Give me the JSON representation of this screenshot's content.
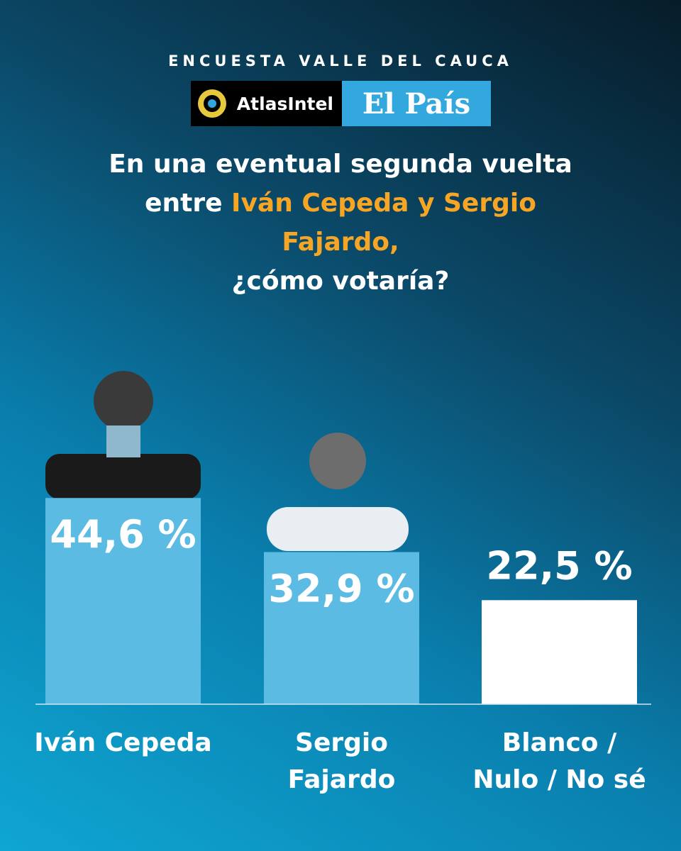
{
  "header": {
    "kicker": "ENCUESTA VALLE DEL CAUCA",
    "logos": [
      "AtlasIntel",
      "El País"
    ],
    "question": {
      "before": "En una eventual segunda vuelta entre",
      "highlight": "Iván Cepeda y Sergio Fajardo,",
      "after": "¿cómo votaría?"
    }
  },
  "chart_data": {
    "type": "bar",
    "categories": [
      "Iván Cepeda",
      "Sergio Fajardo",
      "Blanco / Nulo / No sé"
    ],
    "values": [
      44.6,
      32.9,
      22.5
    ],
    "value_labels": [
      "44,6 %",
      "32,9 %",
      "22,5 %"
    ],
    "colors": [
      "#5bbbe2",
      "#5bbbe2",
      "#ffffff"
    ]
  }
}
